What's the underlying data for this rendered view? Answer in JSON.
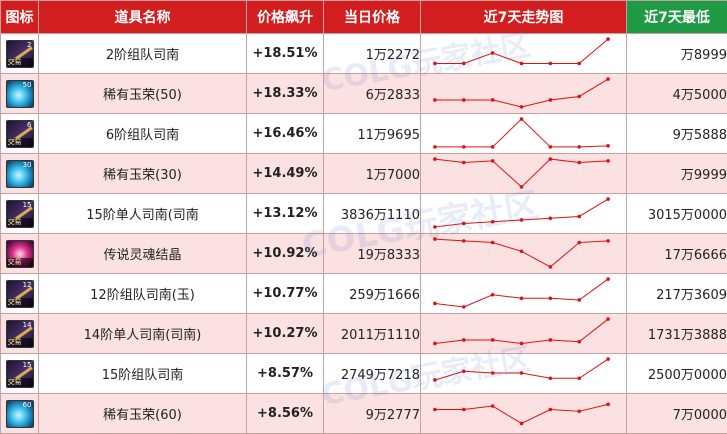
{
  "headers": {
    "icon": "图标",
    "name": "道具名称",
    "change": "价格飙升",
    "price": "当日价格",
    "trend": "近7天走势图",
    "low": "近7天最低"
  },
  "watermark": "COLG玩家社区",
  "colors": {
    "header_red": "#d21e1e",
    "header_green": "#1f9a45",
    "accent_red": "#e01010",
    "row_alt": "#fbe1e1"
  },
  "rows": [
    {
      "icon": {
        "type": "box-icon",
        "top": "2",
        "tag": "交易"
      },
      "name": "2阶组队司南",
      "change": "+18.51%",
      "price": "1万2272",
      "low": "万8999",
      "trend": [
        2,
        2,
        5,
        2,
        2,
        2,
        9
      ]
    },
    {
      "icon": {
        "type": "gem-icon",
        "top": "50",
        "tag": ""
      },
      "name": "稀有玉荣(50)",
      "change": "+18.33%",
      "price": "6万2833",
      "low": "4万5000",
      "trend": [
        3,
        3,
        3,
        1,
        3,
        4,
        9
      ]
    },
    {
      "icon": {
        "type": "box-icon",
        "top": "6",
        "tag": "交易"
      },
      "name": "6阶组队司南",
      "change": "+16.46%",
      "price": "11万9695",
      "low": "9万5888",
      "trend": [
        1,
        1,
        1,
        9,
        1,
        1,
        1.3
      ]
    },
    {
      "icon": {
        "type": "gem-icon",
        "top": "30",
        "tag": ""
      },
      "name": "稀有玉荣(30)",
      "change": "+14.49%",
      "price": "1万7000",
      "low": "万9999",
      "trend": [
        9,
        8,
        8.5,
        1,
        9,
        8,
        8.5
      ]
    },
    {
      "icon": {
        "type": "box-icon",
        "top": "15",
        "tag": "交易"
      },
      "name": "15阶单人司南(司南",
      "change": "+13.12%",
      "price": "3836万1110",
      "low": "3015万0000",
      "trend": [
        1,
        2,
        2.5,
        3,
        3.5,
        4,
        9
      ]
    },
    {
      "icon": {
        "type": "soul-icon",
        "top": "",
        "tag": "交易"
      },
      "name": "传说灵魂结晶",
      "change": "+10.92%",
      "price": "19万8333",
      "low": "17万6666",
      "trend": [
        9,
        8.5,
        8,
        5.5,
        1,
        8,
        8.5
      ]
    },
    {
      "icon": {
        "type": "box-icon",
        "top": "12",
        "tag": "交易"
      },
      "name": "12阶组队司南(玉)",
      "change": "+10.77%",
      "price": "259万1666",
      "low": "217万3609",
      "trend": [
        2,
        1,
        4.5,
        3.5,
        3.5,
        3,
        9
      ]
    },
    {
      "icon": {
        "type": "box-icon",
        "top": "14",
        "tag": "交易"
      },
      "name": "14阶单人司南(司南)",
      "change": "+10.27%",
      "price": "2011万1110",
      "low": "1731万3888",
      "trend": [
        2,
        3,
        3,
        2,
        3,
        2.5,
        9
      ]
    },
    {
      "icon": {
        "type": "box-icon",
        "top": "15",
        "tag": "交易"
      },
      "name": "15阶组队司南",
      "change": "+8.57%",
      "price": "2749万7218",
      "low": "2500万0000",
      "trend": [
        3,
        5.5,
        5,
        5,
        3.5,
        3.5,
        9
      ]
    },
    {
      "icon": {
        "type": "gem-icon",
        "top": "60",
        "tag": ""
      },
      "name": "稀有玉荣(60)",
      "change": "+8.56%",
      "price": "9万2777",
      "low": "7万0000",
      "trend": [
        6,
        6,
        7,
        2,
        6,
        5.5,
        7.5
      ]
    }
  ]
}
